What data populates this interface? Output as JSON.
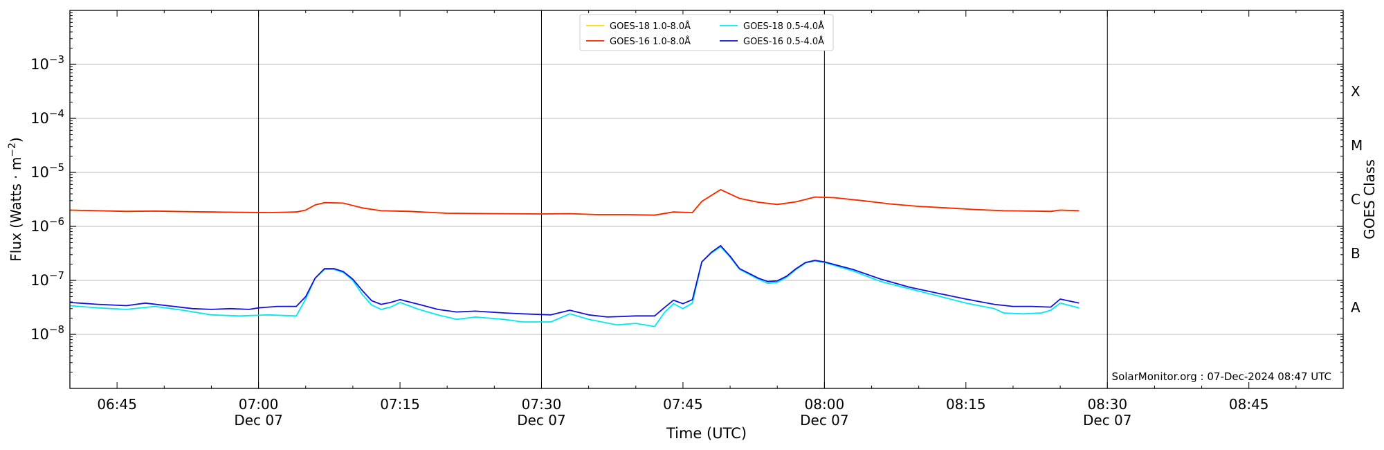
{
  "chart_data": {
    "type": "line",
    "xlabel": "Time (UTC)",
    "ylabel_main": "Flux (Watts · m",
    "ylabel_sup": "−2",
    "ylabel_close": ")",
    "right_axis_label": "GOES Class",
    "credit": "SolarMonitor.org : 07-Dec-2024 08:47 UTC",
    "y_scale": "log",
    "x_start": "2024-12-07 06:40",
    "x_end": "2024-12-07 08:55",
    "ylim": [
      1e-09,
      0.01
    ],
    "grid": "horizontal at each decade",
    "legend_position": "top-center",
    "x_ticks": [
      {
        "time": "06:45",
        "date": ""
      },
      {
        "time": "07:00",
        "date": "Dec 07"
      },
      {
        "time": "07:15",
        "date": ""
      },
      {
        "time": "07:30",
        "date": "Dec 07"
      },
      {
        "time": "07:45",
        "date": ""
      },
      {
        "time": "08:00",
        "date": "Dec 07"
      },
      {
        "time": "08:15",
        "date": ""
      },
      {
        "time": "08:30",
        "date": "Dec 07"
      },
      {
        "time": "08:45",
        "date": ""
      }
    ],
    "vertical_lines": [
      "07:00",
      "07:30",
      "08:00",
      "08:30"
    ],
    "y_ticks": [
      {
        "exp": "−3",
        "value": 0.001
      },
      {
        "exp": "−4",
        "value": 0.0001
      },
      {
        "exp": "−5",
        "value": 1e-05
      },
      {
        "exp": "−6",
        "value": 1e-06
      },
      {
        "exp": "−7",
        "value": 1e-07
      },
      {
        "exp": "−8",
        "value": 1e-08
      }
    ],
    "classes": [
      {
        "label": "X",
        "value": 0.000316
      },
      {
        "label": "M",
        "value": 3.16e-05
      },
      {
        "label": "C",
        "value": 3.16e-06
      },
      {
        "label": "B",
        "value": 3.16e-07
      },
      {
        "label": "A",
        "value": 3.16e-08
      }
    ],
    "legend": [
      {
        "name": "GOES-18 1.0-8.0Å",
        "color": "#ffd700"
      },
      {
        "name": "GOES-16 1.0-8.0Å",
        "color": "#ff2200"
      },
      {
        "name": "GOES-18 0.5-4.0Å",
        "color": "#00e8f0"
      },
      {
        "name": "GOES-16 0.5-4.0Å",
        "color": "#1010e0"
      }
    ],
    "series": [
      {
        "name": "GOES-18 1.0-8.0Å",
        "color": "#ffd700",
        "points": [
          [
            "06:40",
            2e-06
          ],
          [
            "06:43",
            1.95e-06
          ],
          [
            "06:46",
            1.9e-06
          ],
          [
            "06:49",
            1.92e-06
          ],
          [
            "06:52",
            1.88e-06
          ],
          [
            "06:55",
            1.85e-06
          ],
          [
            "06:58",
            1.82e-06
          ],
          [
            "07:01",
            1.8e-06
          ],
          [
            "07:04",
            1.85e-06
          ],
          [
            "07:05",
            2e-06
          ],
          [
            "07:06",
            2.5e-06
          ],
          [
            "07:07",
            2.75e-06
          ],
          [
            "07:09",
            2.7e-06
          ],
          [
            "07:11",
            2.2e-06
          ],
          [
            "07:13",
            1.95e-06
          ],
          [
            "07:16",
            1.9e-06
          ],
          [
            "07:20",
            1.75e-06
          ],
          [
            "07:25",
            1.72e-06
          ],
          [
            "07:30",
            1.7e-06
          ],
          [
            "07:33",
            1.72e-06
          ],
          [
            "07:36",
            1.65e-06
          ],
          [
            "07:39",
            1.65e-06
          ],
          [
            "07:42",
            1.62e-06
          ],
          [
            "07:44",
            1.85e-06
          ],
          [
            "07:46",
            1.8e-06
          ],
          [
            "07:47",
            2.9e-06
          ],
          [
            "07:49",
            4.8e-06
          ],
          [
            "07:51",
            3.3e-06
          ],
          [
            "07:53",
            2.8e-06
          ],
          [
            "07:55",
            2.55e-06
          ],
          [
            "07:57",
            2.85e-06
          ],
          [
            "07:59",
            3.5e-06
          ],
          [
            "08:01",
            3.4e-06
          ],
          [
            "08:04",
            3e-06
          ],
          [
            "08:07",
            2.6e-06
          ],
          [
            "08:10",
            2.35e-06
          ],
          [
            "08:13",
            2.2e-06
          ],
          [
            "08:16",
            2.05e-06
          ],
          [
            "08:19",
            1.95e-06
          ],
          [
            "08:22",
            1.92e-06
          ],
          [
            "08:24",
            1.9e-06
          ],
          [
            "08:25",
            2e-06
          ],
          [
            "08:27",
            1.95e-06
          ]
        ]
      },
      {
        "name": "GOES-16 1.0-8.0Å",
        "color": "#ff2200",
        "points": [
          [
            "06:40",
            2e-06
          ],
          [
            "06:43",
            1.95e-06
          ],
          [
            "06:46",
            1.9e-06
          ],
          [
            "06:49",
            1.92e-06
          ],
          [
            "06:52",
            1.88e-06
          ],
          [
            "06:55",
            1.85e-06
          ],
          [
            "06:58",
            1.82e-06
          ],
          [
            "07:01",
            1.8e-06
          ],
          [
            "07:04",
            1.85e-06
          ],
          [
            "07:05",
            2e-06
          ],
          [
            "07:06",
            2.5e-06
          ],
          [
            "07:07",
            2.75e-06
          ],
          [
            "07:09",
            2.7e-06
          ],
          [
            "07:11",
            2.2e-06
          ],
          [
            "07:13",
            1.95e-06
          ],
          [
            "07:16",
            1.9e-06
          ],
          [
            "07:20",
            1.75e-06
          ],
          [
            "07:25",
            1.72e-06
          ],
          [
            "07:30",
            1.7e-06
          ],
          [
            "07:33",
            1.72e-06
          ],
          [
            "07:36",
            1.65e-06
          ],
          [
            "07:39",
            1.65e-06
          ],
          [
            "07:42",
            1.62e-06
          ],
          [
            "07:44",
            1.85e-06
          ],
          [
            "07:46",
            1.8e-06
          ],
          [
            "07:47",
            2.9e-06
          ],
          [
            "07:49",
            4.8e-06
          ],
          [
            "07:51",
            3.3e-06
          ],
          [
            "07:53",
            2.8e-06
          ],
          [
            "07:55",
            2.55e-06
          ],
          [
            "07:57",
            2.85e-06
          ],
          [
            "07:59",
            3.5e-06
          ],
          [
            "08:01",
            3.4e-06
          ],
          [
            "08:04",
            3e-06
          ],
          [
            "08:07",
            2.6e-06
          ],
          [
            "08:10",
            2.35e-06
          ],
          [
            "08:13",
            2.2e-06
          ],
          [
            "08:16",
            2.05e-06
          ],
          [
            "08:19",
            1.95e-06
          ],
          [
            "08:22",
            1.92e-06
          ],
          [
            "08:24",
            1.9e-06
          ],
          [
            "08:25",
            2e-06
          ],
          [
            "08:27",
            1.95e-06
          ]
        ]
      },
      {
        "name": "GOES-18 0.5-4.0Å",
        "color": "#00e8f0",
        "points": [
          [
            "06:40",
            3.4e-08
          ],
          [
            "06:43",
            3.1e-08
          ],
          [
            "06:46",
            2.9e-08
          ],
          [
            "06:49",
            3.3e-08
          ],
          [
            "06:52",
            2.8e-08
          ],
          [
            "06:55",
            2.3e-08
          ],
          [
            "06:58",
            2.2e-08
          ],
          [
            "07:01",
            2.3e-08
          ],
          [
            "07:04",
            2.2e-08
          ],
          [
            "07:05",
            4.5e-08
          ],
          [
            "07:06",
            1.1e-07
          ],
          [
            "07:07",
            1.6e-07
          ],
          [
            "07:08",
            1.6e-07
          ],
          [
            "07:09",
            1.4e-07
          ],
          [
            "07:10",
            1e-07
          ],
          [
            "07:11",
            5.5e-08
          ],
          [
            "07:12",
            3.5e-08
          ],
          [
            "07:13",
            2.9e-08
          ],
          [
            "07:14",
            3.2e-08
          ],
          [
            "07:15",
            3.9e-08
          ],
          [
            "07:17",
            2.9e-08
          ],
          [
            "07:19",
            2.3e-08
          ],
          [
            "07:21",
            1.9e-08
          ],
          [
            "07:23",
            2.1e-08
          ],
          [
            "07:26",
            1.9e-08
          ],
          [
            "07:28",
            1.7e-08
          ],
          [
            "07:31",
            1.7e-08
          ],
          [
            "07:33",
            2.4e-08
          ],
          [
            "07:35",
            1.9e-08
          ],
          [
            "07:38",
            1.5e-08
          ],
          [
            "07:40",
            1.6e-08
          ],
          [
            "07:42",
            1.4e-08
          ],
          [
            "07:43",
            2.5e-08
          ],
          [
            "07:44",
            3.7e-08
          ],
          [
            "07:45",
            3e-08
          ],
          [
            "07:46",
            3.8e-08
          ],
          [
            "07:47",
            2.2e-07
          ],
          [
            "07:48",
            3.2e-07
          ],
          [
            "07:49",
            4.2e-07
          ],
          [
            "07:50",
            2.7e-07
          ],
          [
            "07:51",
            1.6e-07
          ],
          [
            "07:52",
            1.3e-07
          ],
          [
            "07:53",
            1.05e-07
          ],
          [
            "07:54",
            8.8e-08
          ],
          [
            "07:55",
            9.2e-08
          ],
          [
            "07:56",
            1.15e-07
          ],
          [
            "07:57",
            1.6e-07
          ],
          [
            "07:58",
            2.1e-07
          ],
          [
            "07:59",
            2.3e-07
          ],
          [
            "08:00",
            2.15e-07
          ],
          [
            "08:03",
            1.5e-07
          ],
          [
            "08:06",
            9.5e-08
          ],
          [
            "08:09",
            7e-08
          ],
          [
            "08:12",
            5.2e-08
          ],
          [
            "08:15",
            3.8e-08
          ],
          [
            "08:18",
            3e-08
          ],
          [
            "08:19",
            2.5e-08
          ],
          [
            "08:21",
            2.4e-08
          ],
          [
            "08:23",
            2.5e-08
          ],
          [
            "08:24",
            2.8e-08
          ],
          [
            "08:25",
            3.8e-08
          ],
          [
            "08:27",
            3.1e-08
          ]
        ]
      },
      {
        "name": "GOES-16 0.5-4.0Å",
        "color": "#1010e0",
        "points": [
          [
            "06:40",
            3.9e-08
          ],
          [
            "06:43",
            3.6e-08
          ],
          [
            "06:46",
            3.4e-08
          ],
          [
            "06:48",
            3.8e-08
          ],
          [
            "06:51",
            3.3e-08
          ],
          [
            "06:53",
            3e-08
          ],
          [
            "06:55",
            2.9e-08
          ],
          [
            "06:57",
            3e-08
          ],
          [
            "06:59",
            2.9e-08
          ],
          [
            "07:00",
            3.1e-08
          ],
          [
            "07:02",
            3.3e-08
          ],
          [
            "07:04",
            3.3e-08
          ],
          [
            "07:05",
            5e-08
          ],
          [
            "07:06",
            1.1e-07
          ],
          [
            "07:07",
            1.65e-07
          ],
          [
            "07:08",
            1.65e-07
          ],
          [
            "07:09",
            1.45e-07
          ],
          [
            "07:10",
            1.05e-07
          ],
          [
            "07:11",
            6.5e-08
          ],
          [
            "07:12",
            4.2e-08
          ],
          [
            "07:13",
            3.6e-08
          ],
          [
            "07:14",
            3.9e-08
          ],
          [
            "07:15",
            4.4e-08
          ],
          [
            "07:17",
            3.6e-08
          ],
          [
            "07:19",
            2.9e-08
          ],
          [
            "07:21",
            2.6e-08
          ],
          [
            "07:23",
            2.7e-08
          ],
          [
            "07:26",
            2.5e-08
          ],
          [
            "07:28",
            2.4e-08
          ],
          [
            "07:31",
            2.3e-08
          ],
          [
            "07:33",
            2.8e-08
          ],
          [
            "07:35",
            2.3e-08
          ],
          [
            "07:37",
            2.1e-08
          ],
          [
            "07:40",
            2.2e-08
          ],
          [
            "07:42",
            2.2e-08
          ],
          [
            "07:43",
            3.1e-08
          ],
          [
            "07:44",
            4.3e-08
          ],
          [
            "07:45",
            3.7e-08
          ],
          [
            "07:46",
            4.4e-08
          ],
          [
            "07:47",
            2.2e-07
          ],
          [
            "07:48",
            3.3e-07
          ],
          [
            "07:49",
            4.4e-07
          ],
          [
            "07:50",
            2.8e-07
          ],
          [
            "07:51",
            1.65e-07
          ],
          [
            "07:52",
            1.35e-07
          ],
          [
            "07:53",
            1.1e-07
          ],
          [
            "07:54",
            9.5e-08
          ],
          [
            "07:55",
            9.8e-08
          ],
          [
            "07:56",
            1.2e-07
          ],
          [
            "07:57",
            1.65e-07
          ],
          [
            "07:58",
            2.15e-07
          ],
          [
            "07:59",
            2.35e-07
          ],
          [
            "08:00",
            2.2e-07
          ],
          [
            "08:03",
            1.6e-07
          ],
          [
            "08:06",
            1.05e-07
          ],
          [
            "08:09",
            7.5e-08
          ],
          [
            "08:12",
            5.8e-08
          ],
          [
            "08:15",
            4.5e-08
          ],
          [
            "08:18",
            3.6e-08
          ],
          [
            "08:20",
            3.3e-08
          ],
          [
            "08:22",
            3.3e-08
          ],
          [
            "08:24",
            3.2e-08
          ],
          [
            "08:25",
            4.5e-08
          ],
          [
            "08:27",
            3.8e-08
          ]
        ]
      }
    ]
  }
}
